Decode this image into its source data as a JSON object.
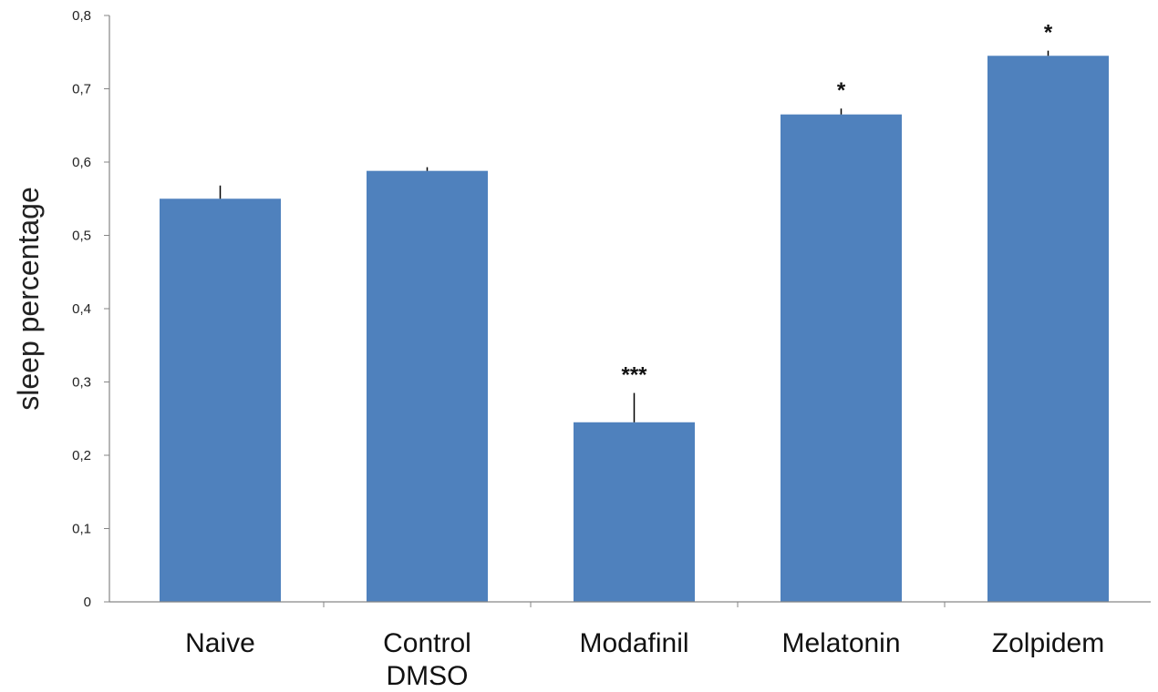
{
  "chart_data": {
    "type": "bar",
    "title": "",
    "xlabel": "",
    "ylabel": "sleep percentage",
    "ylim": [
      0,
      0.8
    ],
    "yticks": [
      0,
      0.1,
      0.2,
      0.3,
      0.4,
      0.5,
      0.6,
      0.7,
      0.8
    ],
    "ytick_labels": [
      "0",
      "0,1",
      "0,2",
      "0,3",
      "0,4",
      "0,5",
      "0,6",
      "0,7",
      "0,8"
    ],
    "categories": [
      [
        "Naive"
      ],
      [
        "Control",
        "DMSO"
      ],
      [
        "Modafinil"
      ],
      [
        "Melatonin"
      ],
      [
        "Zolpidem"
      ]
    ],
    "values": [
      0.55,
      0.588,
      0.245,
      0.665,
      0.745
    ],
    "errors": [
      0.018,
      0.005,
      0.04,
      0.008,
      0.007
    ],
    "significance": [
      "",
      "",
      "***",
      "*",
      "*"
    ],
    "bar_color": "#4f81bd",
    "grid": false,
    "legend": "none"
  }
}
